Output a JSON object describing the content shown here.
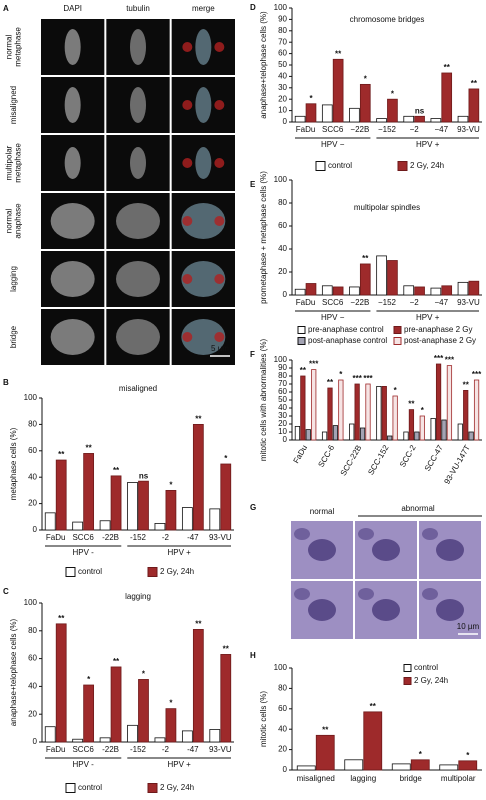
{
  "panel_a": {
    "label": "A",
    "columns": [
      "DAPI",
      "tubulin",
      "merge"
    ],
    "rows": [
      [
        "normal",
        "metaphase"
      ],
      [
        "misaligned"
      ],
      [
        "multipolar",
        "metaphase"
      ],
      [
        "normal",
        "anaphase"
      ],
      [
        "lagging"
      ],
      [
        "bridge"
      ]
    ],
    "scale": "5 µm"
  },
  "panel_g": {
    "label": "G",
    "headers": [
      "normal",
      "abnormal"
    ],
    "scale": "10 µm"
  },
  "chart_data": [
    {
      "type": "bar",
      "panel": "B",
      "title": "misaligned",
      "ylabel": "metaphase cells (%)",
      "categories": [
        "FaDu",
        "SCC6",
        "-22B",
        "-152",
        "-2",
        "-47",
        "93-VU"
      ],
      "category_groups": [
        "HPV -",
        "HPV -",
        "HPV -",
        "HPV +",
        "HPV +",
        "HPV +",
        "HPV +"
      ],
      "series": [
        {
          "name": "control",
          "color": "#ffffff",
          "values": [
            13,
            6,
            7,
            36,
            5,
            17,
            16
          ]
        },
        {
          "name": "2 Gy, 24h",
          "color": "#9e2a2b",
          "values": [
            53,
            58,
            41,
            37,
            30,
            80,
            50
          ],
          "annotations": [
            "**",
            "**",
            "**",
            "ns",
            "*",
            "**",
            "*"
          ]
        }
      ],
      "ylim": [
        0,
        100
      ],
      "yticks": [
        0,
        20,
        40,
        60,
        80,
        100
      ],
      "legend": "bottom"
    },
    {
      "type": "bar",
      "panel": "C",
      "title": "lagging",
      "ylabel": "anaphase+telophase cells (%)",
      "categories": [
        "FaDu",
        "SCC6",
        "-22B",
        "-152",
        "-2",
        "-47",
        "93-VU"
      ],
      "category_groups": [
        "HPV -",
        "HPV -",
        "HPV -",
        "HPV +",
        "HPV +",
        "HPV +",
        "HPV +"
      ],
      "series": [
        {
          "name": "control",
          "color": "#ffffff",
          "values": [
            11,
            2,
            3,
            12,
            3,
            8,
            9
          ]
        },
        {
          "name": "2 Gy, 24h",
          "color": "#9e2a2b",
          "values": [
            85,
            41,
            54,
            45,
            24,
            81,
            63
          ],
          "annotations": [
            "**",
            "*",
            "**",
            "*",
            "*",
            "**",
            "**"
          ]
        }
      ],
      "ylim": [
        0,
        100
      ],
      "yticks": [
        0,
        20,
        40,
        60,
        80,
        100
      ],
      "legend": "bottom"
    },
    {
      "type": "bar",
      "panel": "D",
      "title": "chromosome bridges",
      "ylabel": "anaphase+telophase cells (%)",
      "categories": [
        "FaDu",
        "SCC6",
        "−22B",
        "−152",
        "−2",
        "−47",
        "93-VU"
      ],
      "category_groups": [
        "HPV −",
        "HPV −",
        "HPV −",
        "HPV +",
        "HPV +",
        "HPV +",
        "HPV +"
      ],
      "series": [
        {
          "name": "control",
          "color": "#ffffff",
          "values": [
            5,
            15,
            12,
            3,
            5,
            3,
            5
          ]
        },
        {
          "name": "2 Gy, 24h",
          "color": "#9e2a2b",
          "values": [
            16,
            55,
            33,
            20,
            5,
            43,
            29
          ],
          "annotations": [
            "*",
            "**",
            "*",
            "*",
            "ns",
            "**",
            "**"
          ]
        }
      ],
      "ylim": [
        0,
        100
      ],
      "yticks": [
        0,
        10,
        20,
        30,
        40,
        50,
        60,
        70,
        80,
        90,
        100
      ],
      "legend": "bottom"
    },
    {
      "type": "bar",
      "panel": "E",
      "title": "multipolar spindles",
      "ylabel": "prometaphase + metaphase cells (%)",
      "categories": [
        "FaDu",
        "SCC6",
        "−22B",
        "−152",
        "−2",
        "−47",
        "93-VU"
      ],
      "category_groups": [
        "HPV −",
        "HPV −",
        "HPV −",
        "HPV +",
        "HPV +",
        "HPV +",
        "HPV +"
      ],
      "series": [
        {
          "name": "control",
          "color": "#ffffff",
          "values": [
            5,
            8,
            7,
            34,
            8,
            6,
            11
          ]
        },
        {
          "name": "2 Gy, 24h",
          "color": "#9e2a2b",
          "values": [
            10,
            7,
            27,
            30,
            7,
            8,
            12
          ],
          "annotations": [
            null,
            null,
            "**",
            null,
            null,
            null,
            null
          ]
        }
      ],
      "ylim": [
        0,
        100
      ],
      "yticks": [
        0,
        20,
        40,
        60,
        80,
        100
      ]
    },
    {
      "type": "bar",
      "panel": "F",
      "ylabel": "mitotic cells with abnormalities (%)",
      "categories": [
        "FaDu",
        "SCC-6",
        "SCC-22B",
        "SCC-152",
        "SCC-2",
        "SCC-47",
        "93-VU-147T"
      ],
      "series": [
        {
          "name": "pre-anaphase control",
          "color": "#ffffff",
          "values": [
            17,
            10,
            20,
            67,
            10,
            27,
            20
          ]
        },
        {
          "name": "pre-anaphase 2 Gy",
          "color": "#9e2a2b",
          "values": [
            80,
            65,
            70,
            67,
            38,
            95,
            62
          ],
          "annotations": [
            "**",
            "**",
            "***",
            null,
            "**",
            "***",
            "**"
          ]
        },
        {
          "name": "post-anaphase control",
          "color": "#a3a3b3",
          "values": [
            13,
            18,
            15,
            5,
            10,
            25,
            10
          ]
        },
        {
          "name": "post-anaphase 2 Gy",
          "color": "#f6e4e4",
          "values": [
            88,
            75,
            70,
            55,
            30,
            93,
            75
          ],
          "annotations": [
            "***",
            "*",
            "***",
            "*",
            "*",
            "***",
            "***"
          ]
        }
      ],
      "ylim": [
        0,
        100
      ],
      "yticks": [
        0,
        10,
        20,
        30,
        40,
        50,
        60,
        70,
        80,
        90,
        100
      ],
      "legend": "top"
    },
    {
      "type": "bar",
      "panel": "H",
      "ylabel": "mitotic cells (%)",
      "categories": [
        "misaligned",
        "lagging",
        "bridge",
        "multipolar"
      ],
      "series": [
        {
          "name": "control",
          "color": "#ffffff",
          "values": [
            4,
            10,
            6,
            5
          ]
        },
        {
          "name": "2 Gy, 24h",
          "color": "#9e2a2b",
          "values": [
            34,
            57,
            10,
            9
          ],
          "annotations": [
            "**",
            "**",
            "*",
            "*"
          ]
        }
      ],
      "ylim": [
        0,
        100
      ],
      "yticks": [
        0,
        20,
        40,
        60,
        80,
        100
      ],
      "legend": "top-right"
    }
  ]
}
